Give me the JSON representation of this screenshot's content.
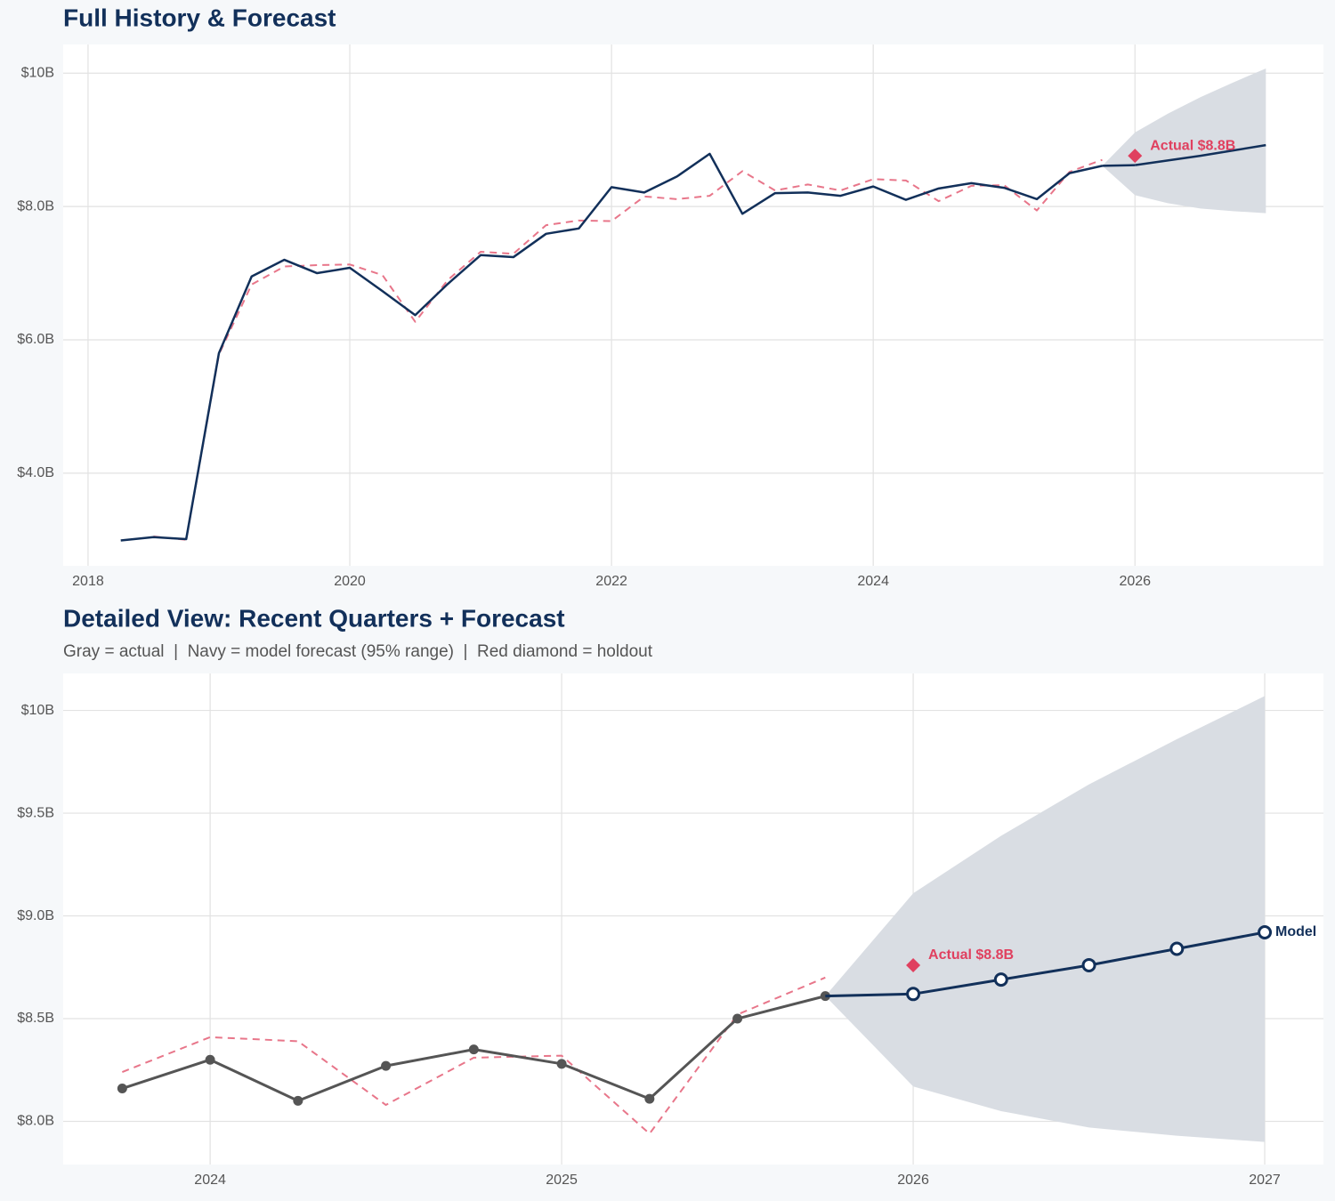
{
  "chart_data": [
    {
      "type": "line",
      "title": "Full History & Forecast",
      "xlim": [
        2017.81,
        2027.44
      ],
      "xticks": [
        2018,
        2020,
        2022,
        2024,
        2026
      ],
      "ylim": [
        2.61,
        10.43
      ],
      "yticks": [
        {
          "value": 4,
          "label": "$4.0B"
        },
        {
          "value": 6,
          "label": "$6.0B"
        },
        {
          "value": 8,
          "label": "$8.0B"
        },
        {
          "value": 10,
          "label": "$10B"
        }
      ],
      "grid": true,
      "band": {
        "color": "#d9dde3",
        "x": [
          2025.75,
          2026,
          2026.25,
          2026.5,
          2026.75,
          2027
        ],
        "lower": [
          8.61,
          8.17,
          8.05,
          7.97,
          7.93,
          7.9
        ],
        "upper": [
          8.61,
          9.11,
          9.39,
          9.64,
          9.86,
          10.07
        ]
      },
      "series": [
        {
          "color": "#e8768a",
          "dashed": true,
          "x": [
            2018.5,
            2018.75,
            2019,
            2019.25,
            2019.5,
            2019.75,
            2020,
            2020.25,
            2020.5,
            2020.75,
            2021,
            2021.25,
            2021.5,
            2021.75,
            2022,
            2022.25,
            2022.5,
            2022.75,
            2023,
            2023.25,
            2023.5,
            2023.75,
            2024,
            2024.25,
            2024.5,
            2024.75,
            2025,
            2025.25,
            2025.5,
            2025.75
          ],
          "values": [
            3.05,
            3.0,
            5.78,
            6.83,
            7.1,
            7.12,
            7.13,
            6.97,
            6.27,
            6.9,
            7.32,
            7.29,
            7.72,
            7.79,
            7.78,
            8.15,
            8.11,
            8.16,
            8.53,
            8.24,
            8.33,
            8.24,
            8.41,
            8.39,
            8.08,
            8.31,
            8.32,
            7.94,
            8.52,
            8.7
          ]
        },
        {
          "color": "#12305a",
          "x": [
            2018.25,
            2018.5,
            2018.75,
            2019,
            2019.25,
            2019.5,
            2019.75,
            2020,
            2020.25,
            2020.5,
            2020.75,
            2021,
            2021.25,
            2021.5,
            2021.75,
            2022,
            2022.25,
            2022.5,
            2022.75,
            2023,
            2023.25,
            2023.5,
            2023.75,
            2024,
            2024.25,
            2024.5,
            2024.75,
            2025,
            2025.25,
            2025.5,
            2025.75
          ],
          "values": [
            2.99,
            3.04,
            3.01,
            5.8,
            6.95,
            7.2,
            7.0,
            7.08,
            6.73,
            6.37,
            6.84,
            7.27,
            7.24,
            7.59,
            7.67,
            8.29,
            8.21,
            8.45,
            8.79,
            7.89,
            8.2,
            8.21,
            8.16,
            8.3,
            8.1,
            8.27,
            8.35,
            8.28,
            8.11,
            8.5,
            8.61
          ]
        },
        {
          "color": "#12305a",
          "forecast": true,
          "x": [
            2026,
            2026.25,
            2026.5,
            2026.75,
            2027
          ],
          "values": [
            8.62,
            8.69,
            8.76,
            8.84,
            8.92
          ]
        }
      ],
      "holdout": {
        "x": 2026,
        "value": 8.76,
        "label": "Actual $8.8B",
        "color": "#e0405f"
      }
    },
    {
      "type": "line",
      "title": "Detailed View: Recent Quarters + Forecast",
      "subtitle": "Gray = actual  |  Navy = model forecast (95% range)  |  Red diamond = holdout",
      "xlim": [
        2023.582,
        2027.167
      ],
      "xticks": [
        2024,
        2025,
        2026,
        2027
      ],
      "ylim": [
        7.79,
        10.18
      ],
      "yticks": [
        {
          "value": 8,
          "label": "$8.0B"
        },
        {
          "value": 8.5,
          "label": "$8.5B"
        },
        {
          "value": 9,
          "label": "$9.0B"
        },
        {
          "value": 9.5,
          "label": "$9.5B"
        },
        {
          "value": 10,
          "label": "$10B"
        }
      ],
      "grid": true,
      "band": {
        "color": "#d9dde3",
        "x": [
          2025.75,
          2026,
          2026.25,
          2026.5,
          2026.75,
          2027
        ],
        "lower": [
          8.61,
          8.17,
          8.05,
          7.97,
          7.93,
          7.9
        ],
        "upper": [
          8.61,
          9.11,
          9.39,
          9.64,
          9.86,
          10.07
        ]
      },
      "series": [
        {
          "color": "#e8768a",
          "dashed": true,
          "x": [
            2023.75,
            2024,
            2024.25,
            2024.5,
            2024.75,
            2025,
            2025.25,
            2025.5,
            2025.75
          ],
          "values": [
            8.24,
            8.41,
            8.39,
            8.08,
            8.31,
            8.32,
            7.94,
            8.52,
            8.7
          ]
        },
        {
          "color": "#555555",
          "marker": "dot",
          "x": [
            2023.75,
            2024,
            2024.25,
            2024.5,
            2024.75,
            2025,
            2025.25,
            2025.5,
            2025.75
          ],
          "values": [
            8.16,
            8.3,
            8.1,
            8.27,
            8.35,
            8.28,
            8.11,
            8.5,
            8.61
          ]
        },
        {
          "name": "Model",
          "color": "#12305a",
          "marker": "open",
          "forecast": true,
          "x": [
            2026,
            2026.25,
            2026.5,
            2026.75,
            2027
          ],
          "values": [
            8.62,
            8.69,
            8.76,
            8.84,
            8.92
          ]
        }
      ],
      "holdout": {
        "x": 2026,
        "value": 8.76,
        "label": "Actual $8.8B",
        "color": "#e0405f"
      }
    }
  ]
}
